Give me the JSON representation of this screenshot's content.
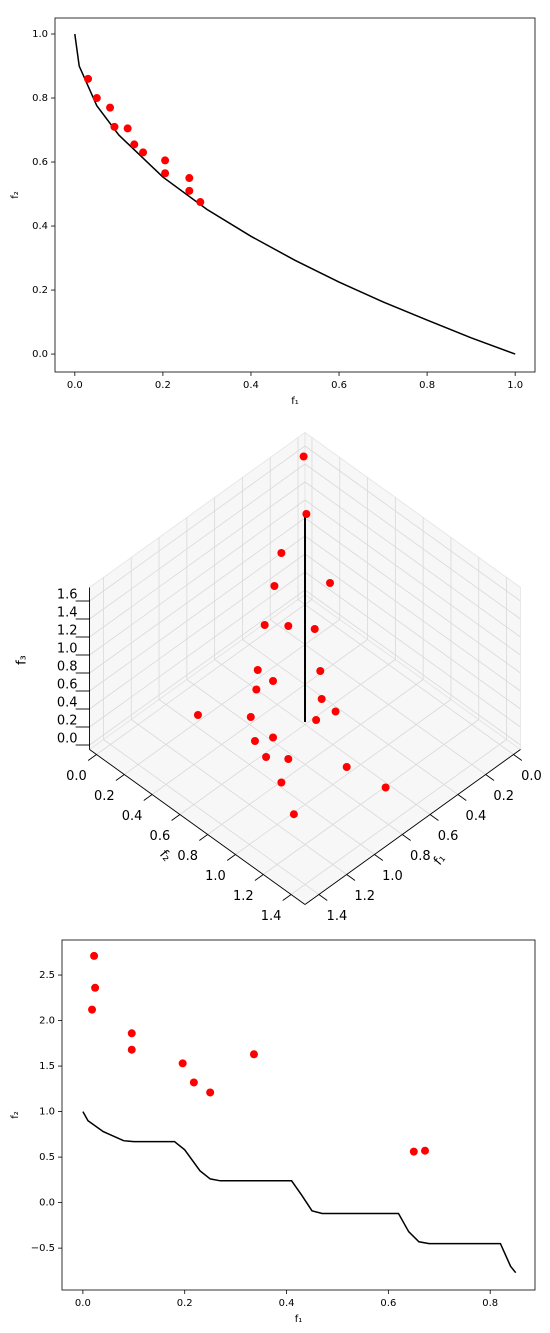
{
  "chart_data": [
    {
      "type": "scatter",
      "xlabel": "f₁",
      "ylabel": "f₂",
      "xlim": [
        -0.045,
        1.045
      ],
      "ylim": [
        -0.056,
        1.05
      ],
      "xticks": [
        {
          "value": 0,
          "label": "0.0"
        },
        0.2,
        0.4,
        0.6,
        0.8,
        {
          "value": 1,
          "label": "1.0"
        }
      ],
      "yticks": [
        {
          "value": 0,
          "label": "0.0"
        },
        0.2,
        0.4,
        0.6,
        0.8,
        {
          "value": 1,
          "label": "1.0"
        }
      ],
      "series": [
        {
          "type": "line",
          "color": "#000000",
          "x": [
            0,
            0.01,
            0.05,
            0.1,
            0.2,
            0.3,
            0.4,
            0.5,
            0.6,
            0.7,
            0.8,
            0.9,
            1.0
          ],
          "y": [
            1,
            0.9,
            0.776,
            0.684,
            0.553,
            0.452,
            0.368,
            0.293,
            0.225,
            0.163,
            0.106,
            0.051,
            0
          ]
        },
        {
          "type": "scatter",
          "color": "#ff0000",
          "x": [
            0.03,
            0.05,
            0.08,
            0.09,
            0.12,
            0.135,
            0.155,
            0.205,
            0.205,
            0.26,
            0.26,
            0.285
          ],
          "y": [
            0.86,
            0.8,
            0.77,
            0.71,
            0.705,
            0.655,
            0.63,
            0.605,
            0.565,
            0.55,
            0.51,
            0.475
          ]
        }
      ]
    },
    {
      "type": "scatter3d",
      "xlabel": "f₁",
      "ylabel": "f₂",
      "zlabel": "f₃",
      "xlim": [
        -0.05,
        1.5
      ],
      "ylim": [
        -0.05,
        1.5
      ],
      "zlim": [
        -0.05,
        1.75
      ],
      "xticks": [
        {
          "value": 0,
          "label": "0.0"
        },
        0.2,
        0.4,
        0.6,
        0.8,
        {
          "value": 1,
          "label": "1.0"
        },
        1.2,
        1.4
      ],
      "yticks": [
        {
          "value": 0,
          "label": "0.0"
        },
        0.2,
        0.4,
        0.6,
        0.8,
        {
          "value": 1,
          "label": "1.0"
        },
        1.2,
        1.4
      ],
      "zticks": [
        {
          "value": 0,
          "label": "0.0"
        },
        0.2,
        0.4,
        0.6,
        0.8,
        {
          "value": 1,
          "label": "1.0"
        },
        1.2,
        1.4,
        1.6
      ],
      "series": [
        {
          "type": "line",
          "color": "#000000",
          "x": [
            0.61,
            0.61
          ],
          "y": [
            0.61,
            0.61
          ],
          "z": [
            0,
            2.35
          ]
        },
        {
          "type": "scatter",
          "color": "#ff0000",
          "x": [
            0.03,
            0.06,
            0.3,
            0.23,
            0.4,
            0.54,
            0.46,
            0.38,
            0.7,
            0.48,
            0.7,
            0.78,
            0.57,
            0.56,
            1.05,
            0.87,
            0.65,
            0.87,
            0.93,
            0.9,
            0.97,
            0.73,
            1.02,
            0.67,
            1.12
          ],
          "y": [
            0.02,
            0.07,
            0.13,
            0.41,
            0.18,
            0.25,
            0.34,
            0.45,
            0.36,
            0.59,
            0.47,
            0.43,
            0.69,
            0.78,
            0.28,
            0.48,
            0.73,
            0.64,
            0.57,
            0.78,
            0.69,
            1.03,
            0.85,
            1.25,
            1.04
          ],
          "z": [
            1.65,
            1.1,
            1.0,
            0.9,
            0.8,
            0.6,
            0.6,
            0.6,
            0.4,
            0.4,
            0.4,
            0.35,
            0.3,
            0.25,
            0.2,
            0.2,
            0.2,
            0.15,
            0.1,
            0.1,
            0.1,
            0.1,
            0.05,
            0.05,
            0.02
          ]
        }
      ]
    },
    {
      "type": "scatter",
      "xlabel": "f₁",
      "ylabel": "f₂",
      "xlim": [
        -0.041,
        0.888
      ],
      "ylim": [
        -0.96,
        2.885
      ],
      "xticks": [
        {
          "value": 0,
          "label": "0.0"
        },
        0.2,
        0.4,
        0.6,
        0.8
      ],
      "yticks": [
        {
          "value": -0.5,
          "label": "−0.5"
        },
        {
          "value": 0,
          "label": "0.0"
        },
        0.5,
        {
          "value": 1,
          "label": "1.0"
        },
        1.5,
        {
          "value": 2,
          "label": "2.0"
        },
        2.5
      ],
      "series": [
        {
          "type": "line",
          "color": "#000000",
          "x": [
            0,
            0.01,
            0.04,
            0.08,
            0.1,
            0.18,
            0.2,
            0.23,
            0.25,
            0.27,
            0.41,
            0.43,
            0.45,
            0.47,
            0.62,
            0.64,
            0.66,
            0.68,
            0.82,
            0.84,
            0.85
          ],
          "y": [
            1.0,
            0.9,
            0.78,
            0.68,
            0.67,
            0.67,
            0.58,
            0.35,
            0.26,
            0.24,
            0.24,
            0.08,
            -0.09,
            -0.12,
            -0.12,
            -0.32,
            -0.43,
            -0.45,
            -0.45,
            -0.7,
            -0.77
          ]
        },
        {
          "type": "scatter",
          "color": "#ff0000",
          "x": [
            0.022,
            0.024,
            0.018,
            0.096,
            0.096,
            0.196,
            0.218,
            0.25,
            0.336,
            0.65,
            0.672
          ],
          "y": [
            2.71,
            2.36,
            2.12,
            1.86,
            1.68,
            1.53,
            1.32,
            1.21,
            1.63,
            0.56,
            0.57
          ]
        }
      ]
    }
  ]
}
